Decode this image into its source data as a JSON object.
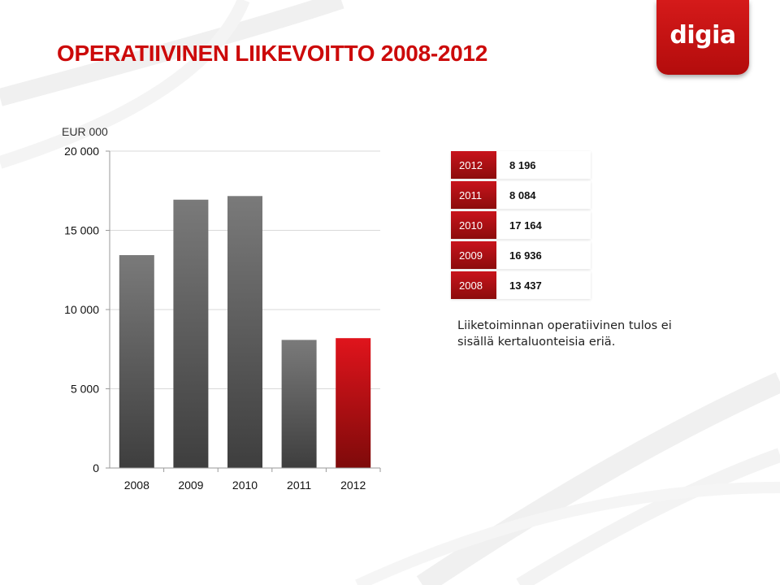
{
  "slide": {
    "title": "OPERATIIVINEN LIIKEVOITTO 2008-2012",
    "logo_text": "digia",
    "note": "Liiketoiminnan operatiivinen tulos ei sisällä kertaluonteisia eriä."
  },
  "chart_data": {
    "type": "bar",
    "unit_label": "EUR 000",
    "categories": [
      "2008",
      "2009",
      "2010",
      "2011",
      "2012"
    ],
    "values": [
      13437,
      16936,
      17164,
      8084,
      8196
    ],
    "ylim": [
      0,
      20000
    ],
    "yticks": [
      0,
      5000,
      10000,
      15000,
      20000
    ],
    "ytick_labels": [
      "0",
      "5 000",
      "10 000",
      "15 000",
      "20 000"
    ],
    "grid": true,
    "colors": {
      "default": "#5a5a5a",
      "highlight": "#c8141c",
      "highlight_index": 4
    }
  },
  "table": {
    "rows": [
      {
        "year": "2012",
        "value": "8 196"
      },
      {
        "year": "2011",
        "value": "8 084"
      },
      {
        "year": "2010",
        "value": "17 164"
      },
      {
        "year": "2009",
        "value": "16 936"
      },
      {
        "year": "2008",
        "value": "13 437"
      }
    ]
  }
}
